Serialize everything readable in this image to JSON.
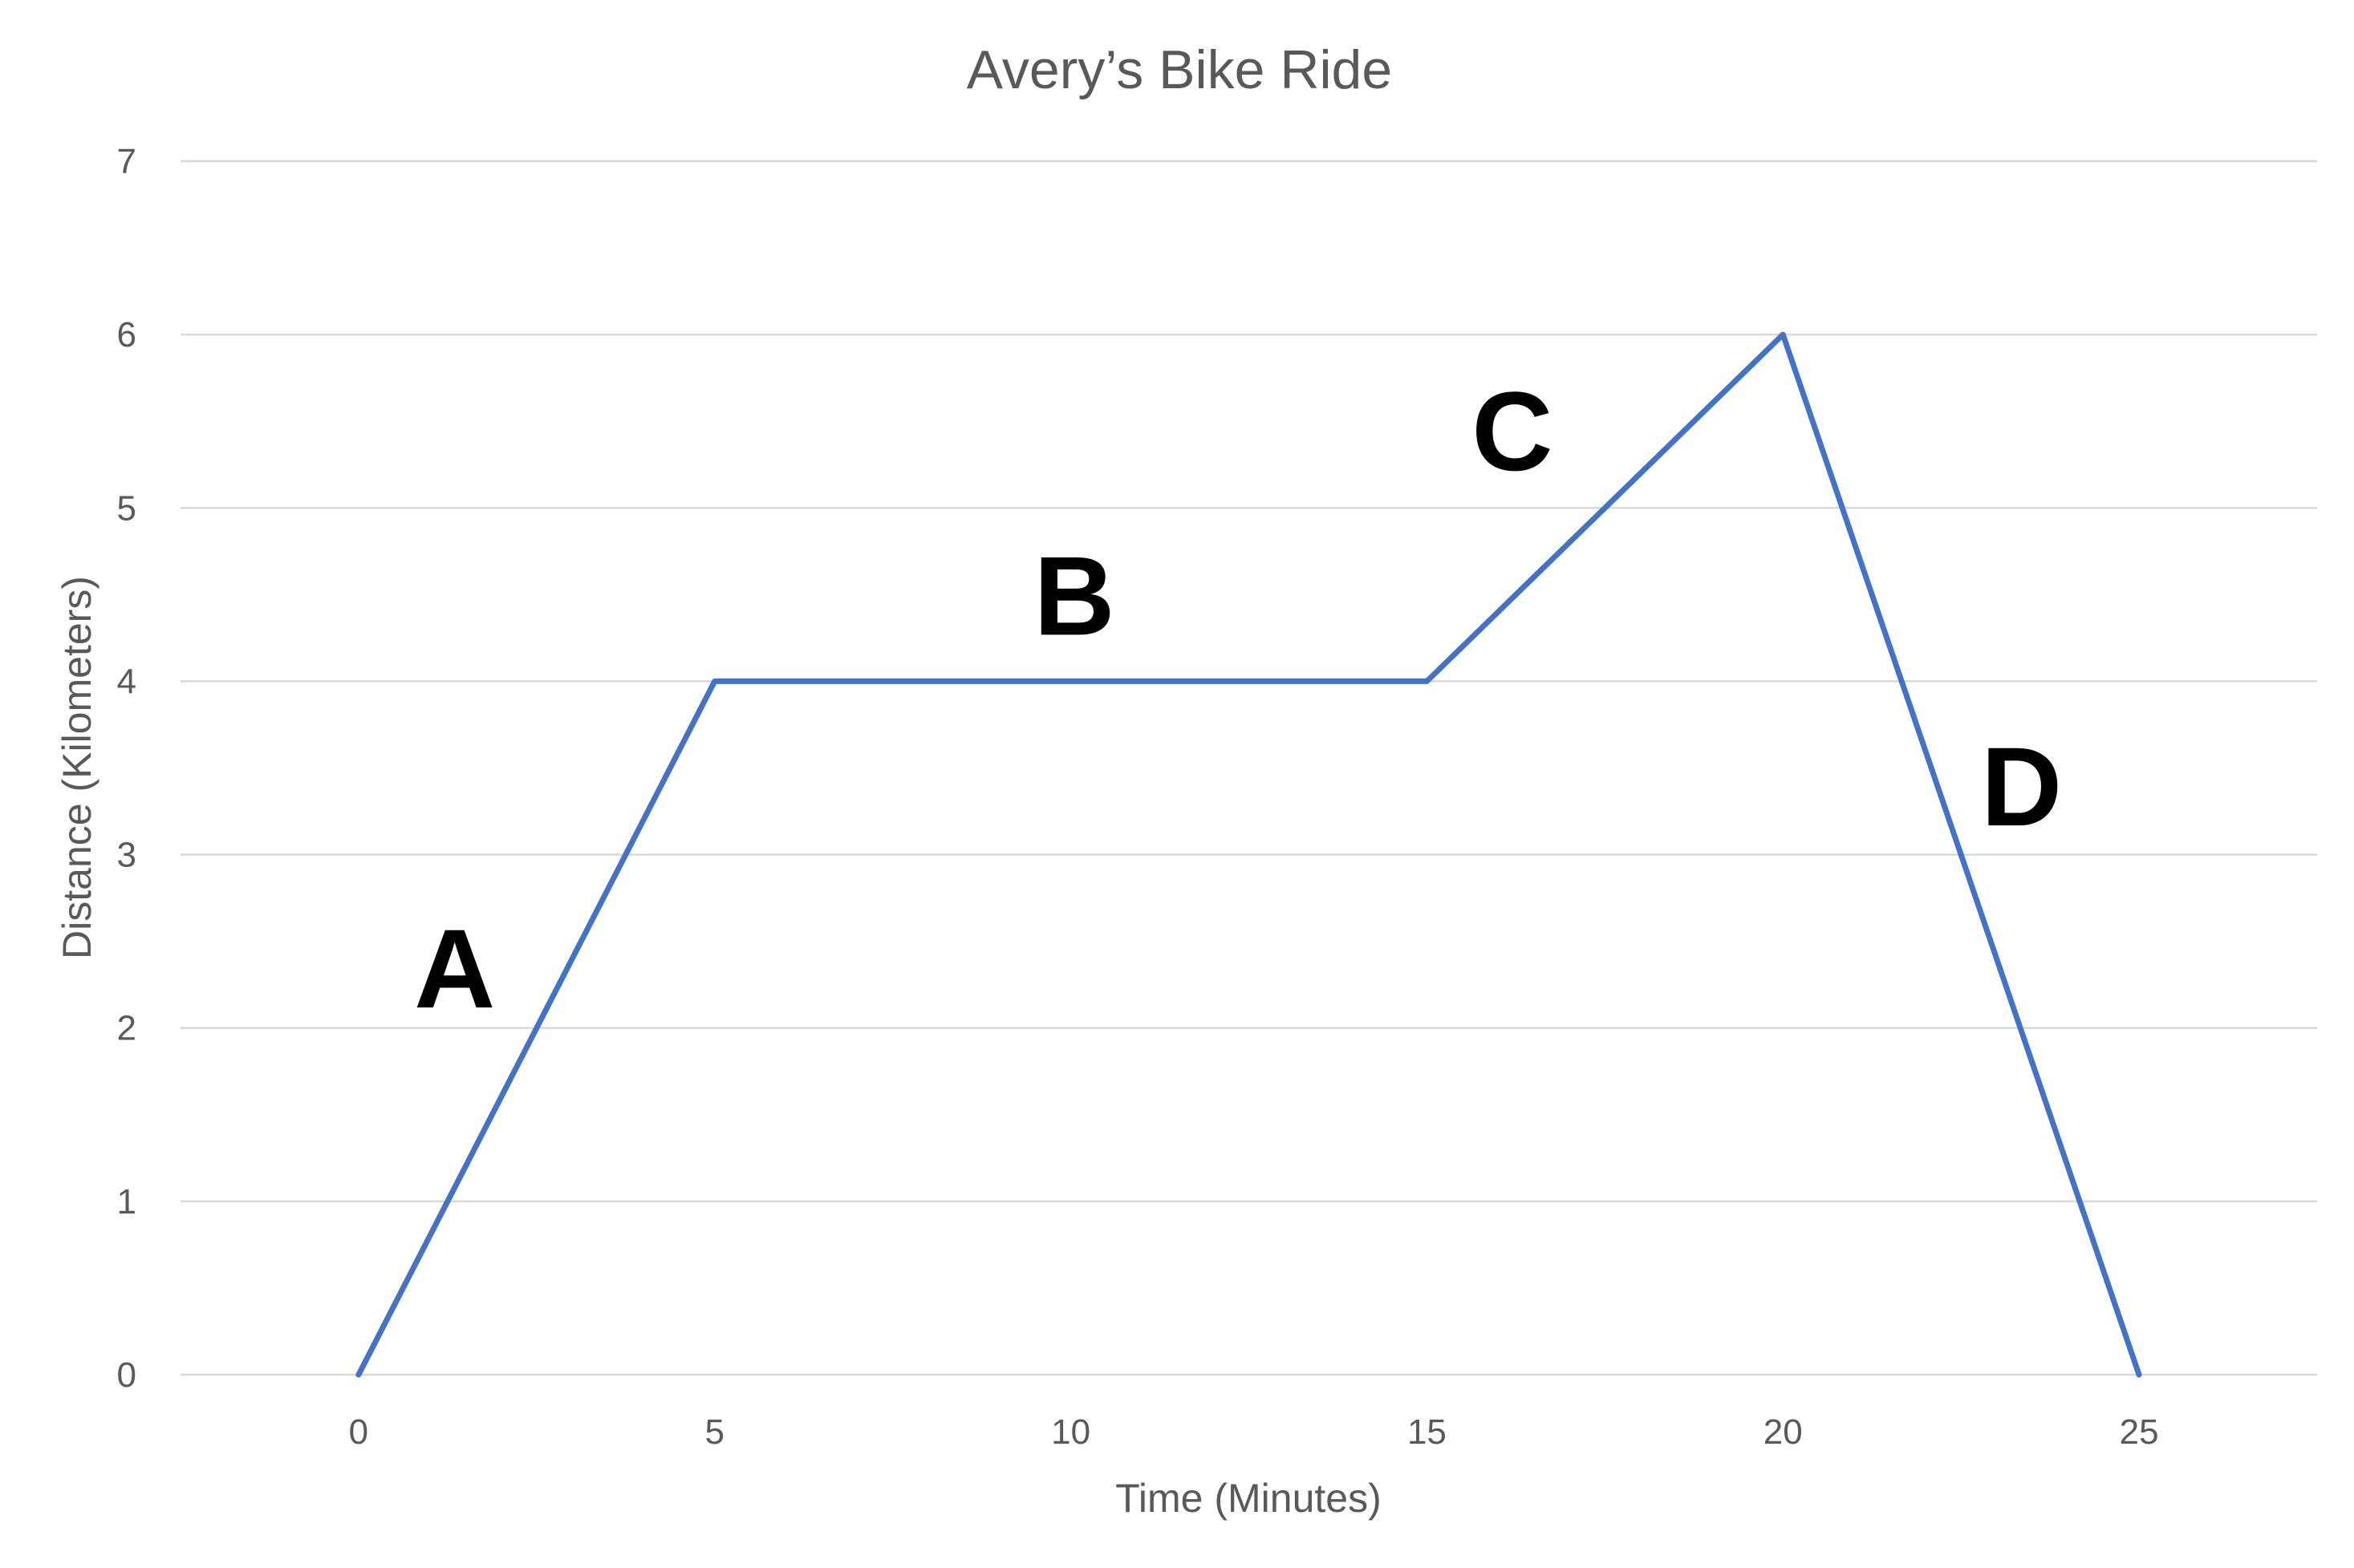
{
  "chart_data": {
    "type": "line",
    "title": "Avery’s Bike Ride",
    "xlabel": "Time (Minutes)",
    "ylabel": "Distance (Kilometers)",
    "xlim": [
      -2.5,
      27.5
    ],
    "ylim": [
      0,
      7
    ],
    "x_ticks": [
      0,
      5,
      10,
      15,
      20,
      25
    ],
    "y_ticks": [
      0,
      1,
      2,
      3,
      4,
      5,
      6,
      7
    ],
    "grid": "horizontal",
    "legend": "none",
    "series": [
      {
        "color": "#4472c4",
        "points": [
          {
            "x": 0,
            "y": 0
          },
          {
            "x": 5,
            "y": 4
          },
          {
            "x": 15,
            "y": 4
          },
          {
            "x": 20,
            "y": 6
          },
          {
            "x": 25,
            "y": 0
          }
        ]
      }
    ],
    "annotations": [
      {
        "text": "A",
        "x": 1.35,
        "y": 2.35
      },
      {
        "text": "B",
        "x": 10.05,
        "y": 4.5
      },
      {
        "text": "C",
        "x": 16.2,
        "y": 5.45
      },
      {
        "text": "D",
        "x": 23.35,
        "y": 3.4
      }
    ]
  }
}
